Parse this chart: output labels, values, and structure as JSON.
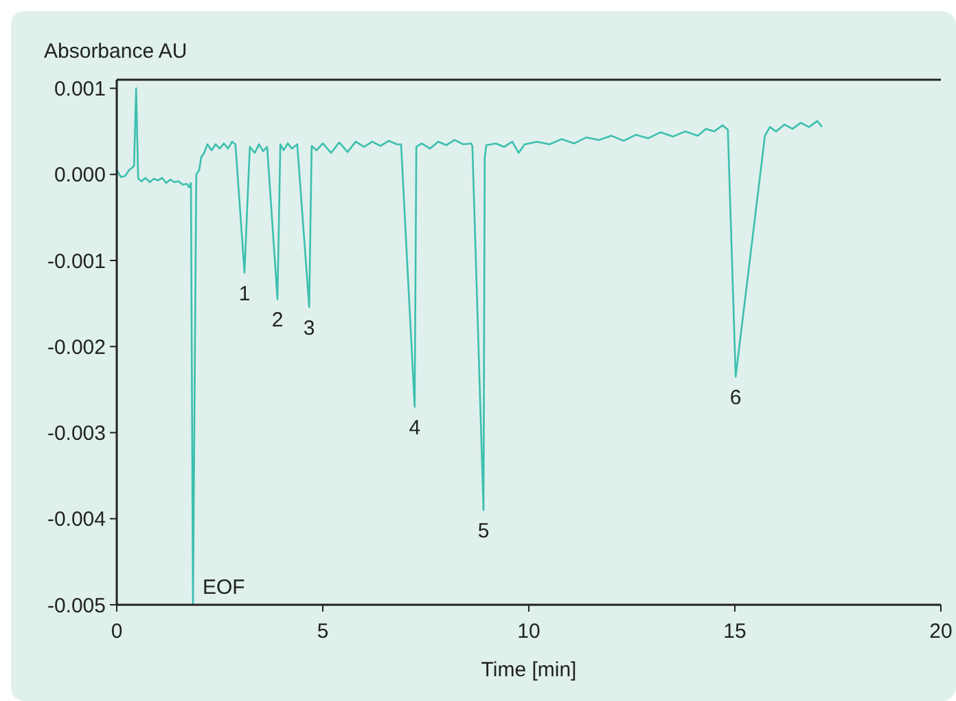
{
  "chart_data": {
    "type": "line",
    "ylabel": "Absorbance AU",
    "xlabel": "Time [min]",
    "x": [
      0,
      0.1,
      0.2,
      0.3,
      0.38,
      0.42,
      0.47,
      0.52,
      0.6,
      0.7,
      0.8,
      0.9,
      1.0,
      1.1,
      1.2,
      1.3,
      1.4,
      1.5,
      1.6,
      1.7,
      1.76,
      1.8,
      1.85,
      1.93,
      2.0,
      2.05,
      2.12,
      2.2,
      2.3,
      2.4,
      2.5,
      2.6,
      2.7,
      2.8,
      2.88,
      3.1,
      3.2,
      3.23,
      3.35,
      3.45,
      3.55,
      3.65,
      3.9,
      3.97,
      4.05,
      4.15,
      4.25,
      4.38,
      4.67,
      4.73,
      4.85,
      5.0,
      5.2,
      5.4,
      5.6,
      5.8,
      6.0,
      6.2,
      6.4,
      6.6,
      6.8,
      6.9,
      7.23,
      7.27,
      7.4,
      7.6,
      7.8,
      8.0,
      8.2,
      8.4,
      8.6,
      8.63,
      8.9,
      8.93,
      8.97,
      9.2,
      9.4,
      9.6,
      9.75,
      9.9,
      10.2,
      10.5,
      10.8,
      11.1,
      11.4,
      11.7,
      12.0,
      12.3,
      12.6,
      12.9,
      13.2,
      13.5,
      13.8,
      14.1,
      14.3,
      14.5,
      14.7,
      14.83,
      15.02,
      15.73,
      15.85,
      16.0,
      16.2,
      16.4,
      16.6,
      16.8,
      17.0,
      17.1
    ],
    "series": [
      {
        "color": "#3cbfae",
        "values": [
          5e-05,
          -3e-05,
          -2e-05,
          5e-05,
          8e-05,
          0.0001,
          0.001,
          -5e-05,
          -8e-05,
          -4e-05,
          -9e-05,
          -5e-05,
          -7e-05,
          -4e-05,
          -0.0001,
          -6e-05,
          -9e-05,
          -8e-05,
          -0.00012,
          -0.00011,
          -0.00015,
          -0.0001,
          -0.005,
          0.0,
          5e-05,
          0.0002,
          0.00025,
          0.00035,
          0.00028,
          0.00035,
          0.0003,
          0.00036,
          0.0003,
          0.00038,
          0.00035,
          -0.00114,
          0.0,
          0.00032,
          0.00025,
          0.00035,
          0.00027,
          0.00032,
          -0.00145,
          0.00035,
          0.00028,
          0.00036,
          0.0003,
          0.00035,
          -0.00154,
          0.00033,
          0.00028,
          0.00036,
          0.00025,
          0.00037,
          0.00026,
          0.00038,
          0.00032,
          0.00038,
          0.00033,
          0.00039,
          0.00035,
          0.00035,
          -0.0027,
          0.00032,
          0.00036,
          0.0003,
          0.00038,
          0.00034,
          0.0004,
          0.00035,
          0.00036,
          0.00033,
          -0.0039,
          0.0002,
          0.00034,
          0.00036,
          0.00032,
          0.00038,
          0.00025,
          0.00035,
          0.00038,
          0.00035,
          0.00041,
          0.00036,
          0.00043,
          0.0004,
          0.00045,
          0.00039,
          0.00046,
          0.00042,
          0.00049,
          0.00044,
          0.0005,
          0.00045,
          0.00053,
          0.0005,
          0.00057,
          0.00052,
          -0.00235,
          0.00045,
          0.00055,
          0.0005,
          0.00058,
          0.00053,
          0.0006,
          0.00055,
          0.00062,
          0.00056
        ]
      }
    ],
    "xlim": [
      0,
      20
    ],
    "xticks": [
      0,
      5,
      10,
      15,
      20
    ],
    "ylim": [
      -0.005,
      0.0011
    ],
    "yticks": [
      {
        "value": -0.005,
        "label": "-0.005"
      },
      {
        "value": -0.004,
        "label": "-0.004"
      },
      {
        "value": -0.003,
        "label": "-0.003"
      },
      {
        "value": -0.002,
        "label": "-0.002"
      },
      {
        "value": -0.001,
        "label": "-0.001"
      },
      {
        "value": 0,
        "label": "0.000"
      },
      {
        "value": 0.001,
        "label": "0.001"
      }
    ],
    "grid": false,
    "marker": "none",
    "line_style": "solid",
    "annotations": [
      {
        "text": "1",
        "x": 3.1,
        "y": -0.00114
      },
      {
        "text": "2",
        "x": 3.9,
        "y": -0.00145
      },
      {
        "text": "3",
        "x": 4.67,
        "y": -0.00154
      },
      {
        "text": "4",
        "x": 7.23,
        "y": -0.0027
      },
      {
        "text": "5",
        "x": 8.9,
        "y": -0.0039
      },
      {
        "text": "6",
        "x": 15.02,
        "y": -0.00235
      },
      {
        "text": "EOF",
        "x": 1.85,
        "y": -0.005
      }
    ]
  }
}
